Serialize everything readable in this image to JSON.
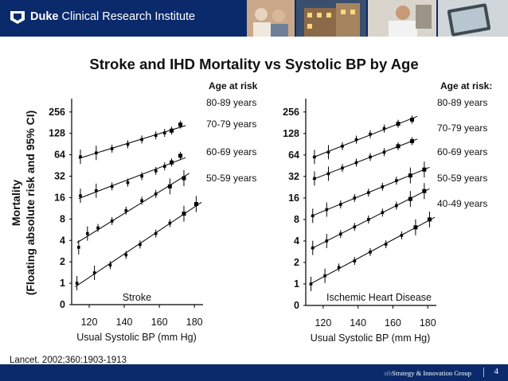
{
  "header": {
    "brand_bold": "Duke",
    "brand_rest": " Clinical Research Institute",
    "icon": "duke-logo-icon"
  },
  "title": "Stroke and IHD Mortality vs Systolic BP by Age",
  "source": "Lancet. 2002;360:1903-1913",
  "footer": {
    "faint": "sib",
    "text": "Strategy & Innovation Group",
    "page": "4"
  },
  "chart_data": [
    {
      "type": "scatter",
      "title": "Stroke",
      "xlabel": "Usual Systolic BP (mm Hg)",
      "ylabel_line1": "Mortality",
      "ylabel_line2": "(Floating absolute risk and 95% CI)",
      "y_scale": "log2",
      "y_ticks": [
        "0",
        "1",
        "2",
        "4",
        "8",
        "16",
        "32",
        "64",
        "128",
        "256"
      ],
      "x_ticks": [
        120,
        140,
        160,
        180
      ],
      "xlim": [
        110,
        184
      ],
      "legend_title": "Age at risk",
      "series": [
        {
          "name": "80-89 years",
          "x": [
            115,
            124,
            133,
            142,
            150,
            158,
            163,
            167,
            172
          ],
          "y": [
            60,
            68,
            78,
            90,
            105,
            120,
            130,
            140,
            170
          ]
        },
        {
          "name": "70-79 years",
          "x": [
            115,
            124,
            133,
            142,
            150,
            158,
            163,
            167,
            172
          ],
          "y": [
            17,
            20,
            23,
            26,
            32,
            38,
            44,
            50,
            62
          ]
        },
        {
          "name": "60-69 years",
          "x": [
            114,
            119,
            125,
            133,
            141,
            150,
            158,
            166,
            174
          ],
          "y": [
            3.2,
            5.0,
            6.0,
            7.5,
            10.5,
            14.5,
            18,
            23,
            30
          ]
        },
        {
          "name": "50-59 years",
          "x": [
            113,
            123,
            132,
            141,
            149,
            158,
            166,
            174,
            181
          ],
          "y": [
            1.0,
            1.4,
            1.8,
            2.5,
            3.5,
            5,
            7,
            9.5,
            13
          ]
        }
      ]
    },
    {
      "type": "scatter",
      "title": "Ischemic Heart Disease",
      "xlabel": "Usual Systolic BP (mm Hg)",
      "y_scale": "log2",
      "y_ticks": [
        "0",
        "1",
        "2",
        "4",
        "8",
        "16",
        "32",
        "64",
        "128",
        "256"
      ],
      "x_ticks": [
        120,
        140,
        160,
        180
      ],
      "xlim": [
        110,
        184
      ],
      "legend_title": "Age at risk:",
      "series": [
        {
          "name": "80-89 years",
          "x": [
            115,
            123,
            131,
            139,
            147,
            155,
            163,
            171
          ],
          "y": [
            60,
            70,
            85,
            105,
            125,
            150,
            175,
            200
          ]
        },
        {
          "name": "70-79 years",
          "x": [
            115,
            123,
            131,
            139,
            147,
            155,
            163,
            171
          ],
          "y": [
            30,
            35,
            42,
            50,
            60,
            70,
            85,
            100
          ]
        },
        {
          "name": "60-69 years",
          "x": [
            114,
            122,
            130,
            138,
            146,
            154,
            162,
            170,
            178
          ],
          "y": [
            9,
            11,
            13,
            16,
            19,
            23,
            28,
            33,
            40
          ]
        },
        {
          "name": "50-59 years",
          "x": [
            114,
            122,
            130,
            138,
            146,
            154,
            162,
            170,
            178
          ],
          "y": [
            3.2,
            4,
            5,
            6.3,
            8,
            10,
            12.5,
            15.5,
            20
          ]
        },
        {
          "name": "40-49 years",
          "x": [
            113,
            121,
            129,
            138,
            147,
            156,
            165,
            173,
            181
          ],
          "y": [
            1,
            1.3,
            1.7,
            2.1,
            2.8,
            3.6,
            4.8,
            6.2,
            8
          ]
        }
      ]
    }
  ]
}
